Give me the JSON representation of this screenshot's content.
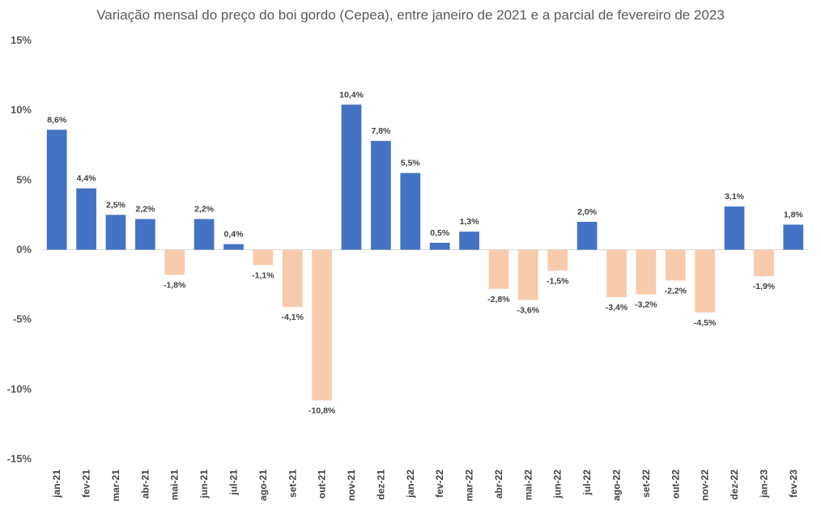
{
  "chart_data": {
    "type": "bar",
    "title": "Variação mensal do preço do boi gordo (Cepea), entre janeiro de 2021 e a parcial de fevereiro de 2023",
    "xlabel": "",
    "ylabel": "",
    "ylim": [
      -15,
      15
    ],
    "yticks": [
      15,
      10,
      5,
      0,
      -5,
      -10,
      -15
    ],
    "ytick_labels": [
      "15%",
      "10%",
      "5%",
      "0%",
      "-5%",
      "-10%",
      "-15%"
    ],
    "grid": false,
    "colors": {
      "positive": "#4472C4",
      "negative": "#F8CBAD"
    },
    "categories": [
      "jan-21",
      "fev-21",
      "mar-21",
      "abr-21",
      "mai-21",
      "jun-21",
      "jul-21",
      "ago-21",
      "set-21",
      "out-21",
      "nov-21",
      "dez-21",
      "jan-22",
      "fev-22",
      "mar-22",
      "abr-22",
      "mai-22",
      "jun-22",
      "jul-22",
      "ago-22",
      "set-22",
      "out-22",
      "nov-22",
      "dez-22",
      "jan-23",
      "fev-23"
    ],
    "values": [
      8.6,
      4.4,
      2.5,
      2.2,
      -1.8,
      2.2,
      0.4,
      -1.1,
      -4.1,
      -10.8,
      10.4,
      7.8,
      5.5,
      0.5,
      1.3,
      -2.8,
      -3.6,
      -1.5,
      2.0,
      -3.4,
      -3.2,
      -2.2,
      -4.5,
      3.1,
      -1.9,
      1.8
    ],
    "data_labels": [
      "8,6%",
      "4,4%",
      "2,5%",
      "2,2%",
      "-1,8%",
      "2,2%",
      "0,4%",
      "-1,1%",
      "-4,1%",
      "-10,8%",
      "10,4%",
      "7,8%",
      "5,5%",
      "0,5%",
      "1,3%",
      "-2,8%",
      "-3,6%",
      "-1,5%",
      "2,0%",
      "-3,4%",
      "-3,2%",
      "-2,2%",
      "-4,5%",
      "3,1%",
      "-1,9%",
      "1,8%"
    ]
  }
}
